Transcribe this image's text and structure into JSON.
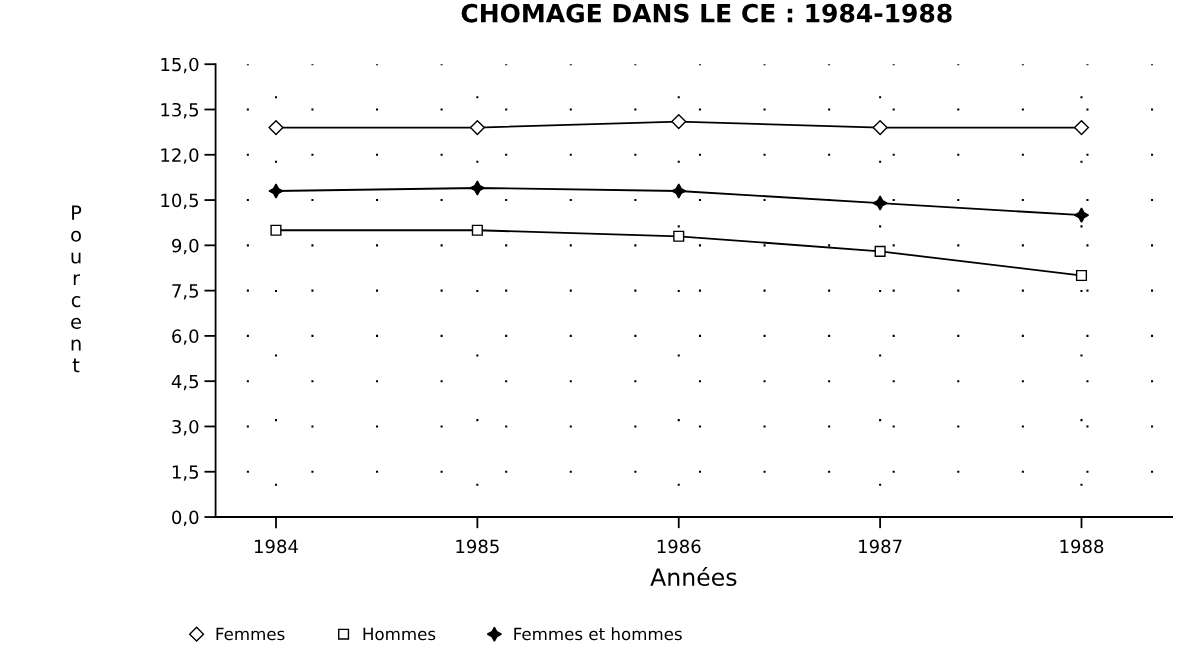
{
  "chart_data": {
    "type": "line",
    "title": "CHOMAGE DANS LE CE : 1984-1988",
    "xlabel": "Années",
    "ylabel": "Pourcent",
    "x": [
      1984,
      1985,
      1986,
      1987,
      1988
    ],
    "series": [
      {
        "name": "Femmes",
        "color": "#000000",
        "marker": "diamond",
        "values": [
          12.9,
          12.9,
          13.1,
          12.9,
          12.9
        ]
      },
      {
        "name": "Hommes",
        "color": "#000000",
        "marker": "square",
        "values": [
          9.5,
          9.5,
          9.3,
          8.8,
          8.0
        ]
      },
      {
        "name": "Femmes et hommes",
        "color": "#000000",
        "marker": "star",
        "values": [
          10.8,
          10.9,
          10.8,
          10.4,
          10.0
        ]
      }
    ],
    "xlim": [
      1983.7,
      1988.45
    ],
    "xticks": [
      1984,
      1985,
      1986,
      1987,
      1988
    ],
    "ylim": [
      0,
      15
    ],
    "yticks": [
      {
        "value": 0,
        "label": "0,0"
      },
      {
        "value": 1.5,
        "label": "1,5"
      },
      {
        "value": 3,
        "label": "3,0"
      },
      {
        "value": 4.5,
        "label": "4,5"
      },
      {
        "value": 6,
        "label": "6,0"
      },
      {
        "value": 7.5,
        "label": "7,5"
      },
      {
        "value": 9,
        "label": "9,0"
      },
      {
        "value": 10.5,
        "label": "10,5"
      },
      {
        "value": 12,
        "label": "12,0"
      },
      {
        "value": 13.5,
        "label": "13,5"
      },
      {
        "value": 15,
        "label": "15,0"
      }
    ],
    "grid": true,
    "legend": "bottom",
    "line_style": "solid"
  }
}
